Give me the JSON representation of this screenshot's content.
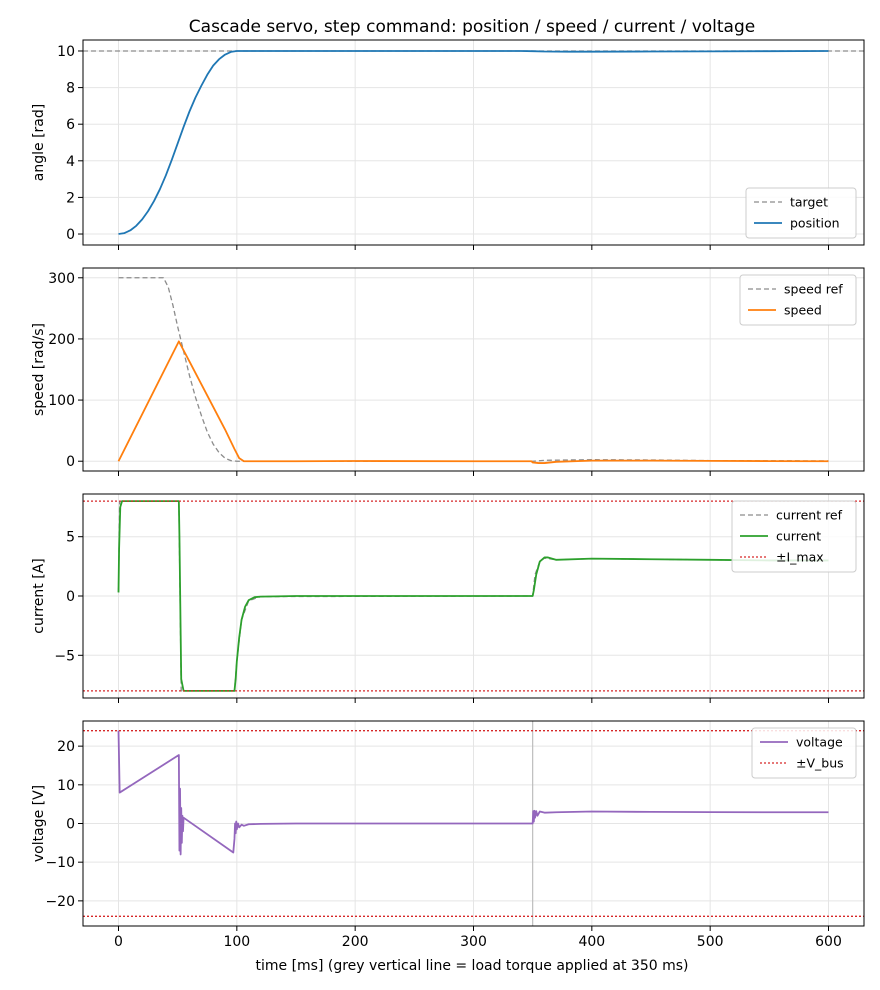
{
  "title": "Cascade servo, step command: position / speed / current / voltage",
  "xlabel": "time [ms]   (grey vertical line = load torque applied at 350 ms)",
  "colors": {
    "target": "#8c8c8c",
    "position": "#1f77b4",
    "speed": "#ff7f0e",
    "current": "#2ca02c",
    "voltage": "#9467bd",
    "limit": "#d62728",
    "event_line": "#bdbdbd"
  },
  "chart_data": [
    {
      "type": "line",
      "ylabel": "angle [rad]",
      "xlim": [
        -30,
        630
      ],
      "ylim": [
        -0.6,
        10.6
      ],
      "xticks": [
        0,
        100,
        200,
        300,
        400,
        500,
        600
      ],
      "yticks": [
        0,
        2,
        4,
        6,
        8,
        10
      ],
      "ytick_labels": [
        "0",
        "2",
        "4",
        "6",
        "8",
        "10"
      ],
      "legend": "lower right",
      "series": [
        {
          "name": "target",
          "style": "dashed",
          "color": "#8c8c8c",
          "x": [
            -30,
            630
          ],
          "y": [
            10,
            10
          ]
        },
        {
          "name": "position",
          "style": "solid",
          "color": "#1f77b4",
          "x": [
            0,
            5,
            10,
            15,
            20,
            25,
            30,
            35,
            40,
            45,
            50,
            55,
            60,
            65,
            70,
            75,
            80,
            85,
            90,
            95,
            100,
            110,
            150,
            200,
            300,
            340,
            350,
            360,
            380,
            400,
            450,
            500,
            550,
            600
          ],
          "y": [
            0,
            0.05,
            0.2,
            0.45,
            0.8,
            1.25,
            1.8,
            2.45,
            3.2,
            4.05,
            4.95,
            5.85,
            6.7,
            7.45,
            8.1,
            8.7,
            9.2,
            9.55,
            9.8,
            9.95,
            10.0,
            10.0,
            10.0,
            10.0,
            10.0,
            10.0,
            9.99,
            9.97,
            9.96,
            9.96,
            9.97,
            9.98,
            9.99,
            10.0
          ]
        }
      ]
    },
    {
      "type": "line",
      "ylabel": "speed [rad/s]",
      "xlim": [
        -30,
        630
      ],
      "ylim": [
        -16,
        316
      ],
      "xticks": [
        0,
        100,
        200,
        300,
        400,
        500,
        600
      ],
      "yticks": [
        0,
        100,
        200,
        300
      ],
      "ytick_labels": [
        "0",
        "100",
        "200",
        "300"
      ],
      "legend": "upper right",
      "series": [
        {
          "name": "speed ref",
          "style": "dashed",
          "color": "#8c8c8c",
          "x": [
            0,
            38,
            42,
            46,
            50,
            55,
            60,
            65,
            70,
            75,
            80,
            85,
            90,
            95,
            100,
            105,
            350,
            360,
            400,
            450,
            500,
            600
          ],
          "y": [
            300,
            300,
            285,
            255,
            220,
            180,
            140,
            105,
            75,
            48,
            28,
            14,
            5,
            1,
            0,
            0,
            0,
            1.5,
            2.5,
            2,
            1,
            0.5
          ]
        },
        {
          "name": "speed",
          "style": "solid",
          "color": "#ff7f0e",
          "x": [
            0,
            51,
            60,
            70,
            80,
            90,
            98,
            102,
            106,
            110,
            150,
            200,
            300,
            349,
            350,
            355,
            360,
            370,
            400,
            450,
            500,
            550,
            600
          ],
          "y": [
            0,
            196,
            163,
            126,
            89,
            52,
            20,
            5,
            0,
            0,
            0,
            0.3,
            0,
            0,
            -2,
            -3,
            -3,
            -1,
            1,
            1,
            0.5,
            0.2,
            0
          ]
        }
      ]
    },
    {
      "type": "line",
      "ylabel": "current [A]",
      "xlim": [
        -30,
        630
      ],
      "ylim": [
        -8.6,
        8.6
      ],
      "xticks": [
        0,
        100,
        200,
        300,
        400,
        500,
        600
      ],
      "yticks": [
        -5,
        0,
        5
      ],
      "ytick_labels": [
        "−5",
        "0",
        "5"
      ],
      "legend": "upper right",
      "series": [
        {
          "name": "current ref",
          "style": "dashed",
          "color": "#8c8c8c",
          "x": [
            0,
            1,
            51,
            52,
            53,
            98,
            100,
            104,
            110,
            120,
            350,
            352,
            356,
            360,
            370,
            400,
            450,
            500,
            550,
            600
          ],
          "y": [
            0.3,
            8,
            8,
            0,
            -8,
            -8,
            -5.5,
            -2,
            -0.4,
            -0.05,
            0,
            1.8,
            2.9,
            3.2,
            3.05,
            3.15,
            3.1,
            3.05,
            3.0,
            3.0
          ]
        },
        {
          "name": "current",
          "style": "solid",
          "color": "#2ca02c",
          "x": [
            0,
            0.5,
            1.5,
            3,
            51,
            51.5,
            53,
            55,
            98,
            99,
            100,
            102,
            104,
            107,
            110,
            115,
            120,
            150,
            200,
            250,
            350,
            351,
            353,
            356,
            360,
            363,
            370,
            400,
            450,
            500,
            550,
            600
          ],
          "y": [
            0.3,
            4,
            7.5,
            8,
            8,
            5,
            -7,
            -8,
            -8,
            -7,
            -5.5,
            -3.5,
            -2,
            -0.9,
            -0.35,
            -0.1,
            -0.05,
            0,
            0,
            0,
            0,
            0.5,
            1.8,
            2.9,
            3.25,
            3.25,
            3.05,
            3.15,
            3.1,
            3.05,
            3.0,
            3.0
          ]
        },
        {
          "name": "±I_max",
          "style": "dotted",
          "color": "#d62728",
          "x": [
            -30,
            630
          ],
          "y": [
            8,
            8
          ]
        },
        {
          "name": "",
          "style": "dotted",
          "color": "#d62728",
          "legend": false,
          "x": [
            -30,
            630
          ],
          "y": [
            -8,
            -8
          ]
        }
      ]
    },
    {
      "type": "line",
      "ylabel": "voltage [V]",
      "xlim": [
        -30,
        630
      ],
      "ylim": [
        -26.5,
        26.5
      ],
      "xticks": [
        0,
        100,
        200,
        300,
        400,
        500,
        600
      ],
      "yticks": [
        -20,
        -10,
        0,
        10,
        20
      ],
      "ytick_labels": [
        "−20",
        "−10",
        "0",
        "10",
        "20"
      ],
      "legend": "upper right",
      "vline_x": 350,
      "series": [
        {
          "name": "voltage",
          "style": "solid",
          "color": "#9467bd",
          "x": [
            0,
            1,
            51,
            51.5,
            52,
            52.5,
            53,
            53.5,
            54,
            54.5,
            55,
            97,
            98,
            98.5,
            99,
            99.5,
            100,
            101,
            102,
            104,
            106,
            110,
            120,
            150,
            200,
            300,
            350,
            350.5,
            351,
            351.5,
            352,
            353,
            354,
            356,
            360,
            370,
            400,
            450,
            500,
            550,
            600
          ],
          "y": [
            24,
            8,
            17.7,
            -7,
            9,
            -8,
            4,
            -5,
            2,
            -2,
            1.5,
            -7.5,
            -4,
            0,
            -2.5,
            0.5,
            -1.5,
            0,
            -1,
            -0.3,
            -0.6,
            -0.2,
            -0.1,
            0,
            0,
            0,
            0,
            3.2,
            0.5,
            3.3,
            1.5,
            3.2,
            2.0,
            3.1,
            2.8,
            2.9,
            3.1,
            3.0,
            2.95,
            2.9,
            2.9
          ]
        },
        {
          "name": "±V_bus",
          "style": "dotted",
          "color": "#d62728",
          "x": [
            -30,
            630
          ],
          "y": [
            24,
            24
          ]
        },
        {
          "name": "",
          "style": "dotted",
          "color": "#d62728",
          "legend": false,
          "x": [
            -30,
            630
          ],
          "y": [
            -24,
            -24
          ]
        }
      ]
    }
  ]
}
